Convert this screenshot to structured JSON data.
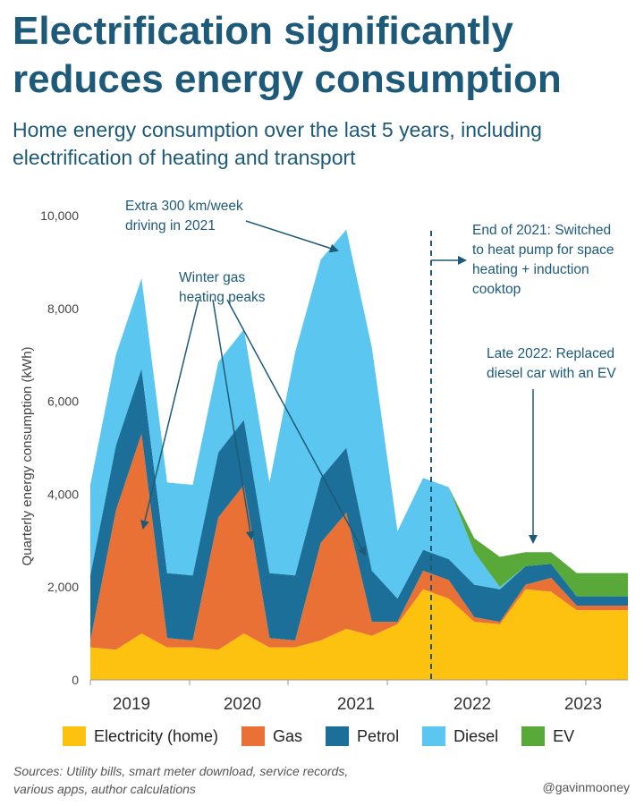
{
  "header": {
    "title": "Electrification significantly reduces energy consumption",
    "subtitle": "Home energy consumption over the last 5 years, including electrification of heating and transport"
  },
  "footer": {
    "sources": "Sources: Utility bills, smart meter download, service records, various apps, author calculations",
    "handle": "@gavinmooney"
  },
  "colors": {
    "title": "#1d5a7a",
    "electricity": "#fdc10f",
    "gas": "#ea7135",
    "petrol": "#1b6f98",
    "diesel": "#5bc6ef",
    "ev": "#58a93a",
    "annotation": "#1d5a7a"
  },
  "chart_data": {
    "type": "area",
    "stacked": true,
    "ylabel": "Quarterly energy consumption (kWh)",
    "ylim": [
      0,
      10000
    ],
    "yticks": [
      0,
      2000,
      4000,
      6000,
      8000,
      10000
    ],
    "ytick_labels": [
      "0",
      "2,000",
      "4,000",
      "6,000",
      "8,000",
      "10,000"
    ],
    "x_labels": [
      "2019",
      "2020",
      "2021",
      "2022",
      "2023"
    ],
    "x": [
      "2018-Q3",
      "2018-Q4",
      "2019-Q1",
      "2019-Q2",
      "2019-Q3",
      "2019-Q4",
      "2020-Q1",
      "2020-Q2",
      "2020-Q3",
      "2020-Q4",
      "2021-Q1",
      "2021-Q2",
      "2021-Q3",
      "2021-Q4",
      "2022-Q1",
      "2022-Q2",
      "2022-Q3",
      "2022-Q4",
      "2023-Q1",
      "2023-Q2",
      "2023-Q3",
      "2023-Q4"
    ],
    "series": [
      {
        "name": "Electricity (home)",
        "values": [
          700,
          650,
          1000,
          700,
          700,
          650,
          1000,
          700,
          700,
          850,
          1100,
          950,
          1200,
          1950,
          1750,
          1250,
          1200,
          1950,
          1900,
          1500,
          1500,
          1500
        ]
      },
      {
        "name": "Gas",
        "values": [
          150,
          3000,
          4300,
          200,
          150,
          2850,
          3200,
          200,
          150,
          2100,
          2500,
          300,
          50,
          400,
          400,
          100,
          50,
          100,
          300,
          100,
          100,
          100
        ]
      },
      {
        "name": "Petrol",
        "values": [
          1400,
          1400,
          1400,
          1400,
          1400,
          1400,
          1400,
          1400,
          1400,
          1400,
          1400,
          1100,
          500,
          450,
          450,
          700,
          700,
          400,
          300,
          200,
          200,
          200
        ]
      },
      {
        "name": "Diesel",
        "values": [
          1950,
          1950,
          1950,
          1950,
          1950,
          1950,
          1950,
          1950,
          4800,
          4700,
          4700,
          4800,
          1450,
          1550,
          1550,
          700,
          50,
          0,
          0,
          0,
          0,
          0
        ]
      },
      {
        "name": "EV",
        "values": [
          0,
          0,
          0,
          0,
          0,
          0,
          0,
          0,
          0,
          0,
          0,
          0,
          0,
          0,
          0,
          300,
          650,
          300,
          250,
          500,
          500,
          500
        ]
      }
    ],
    "annotations": [
      {
        "text": "Extra 300 km/week driving in 2021"
      },
      {
        "text": "Winter gas heating peaks"
      },
      {
        "text": "End of 2021: Switched to heat pump for space heating + induction cooktop"
      },
      {
        "text": "Late 2022: Replaced diesel car with an EV"
      }
    ],
    "legend_position": "bottom"
  }
}
